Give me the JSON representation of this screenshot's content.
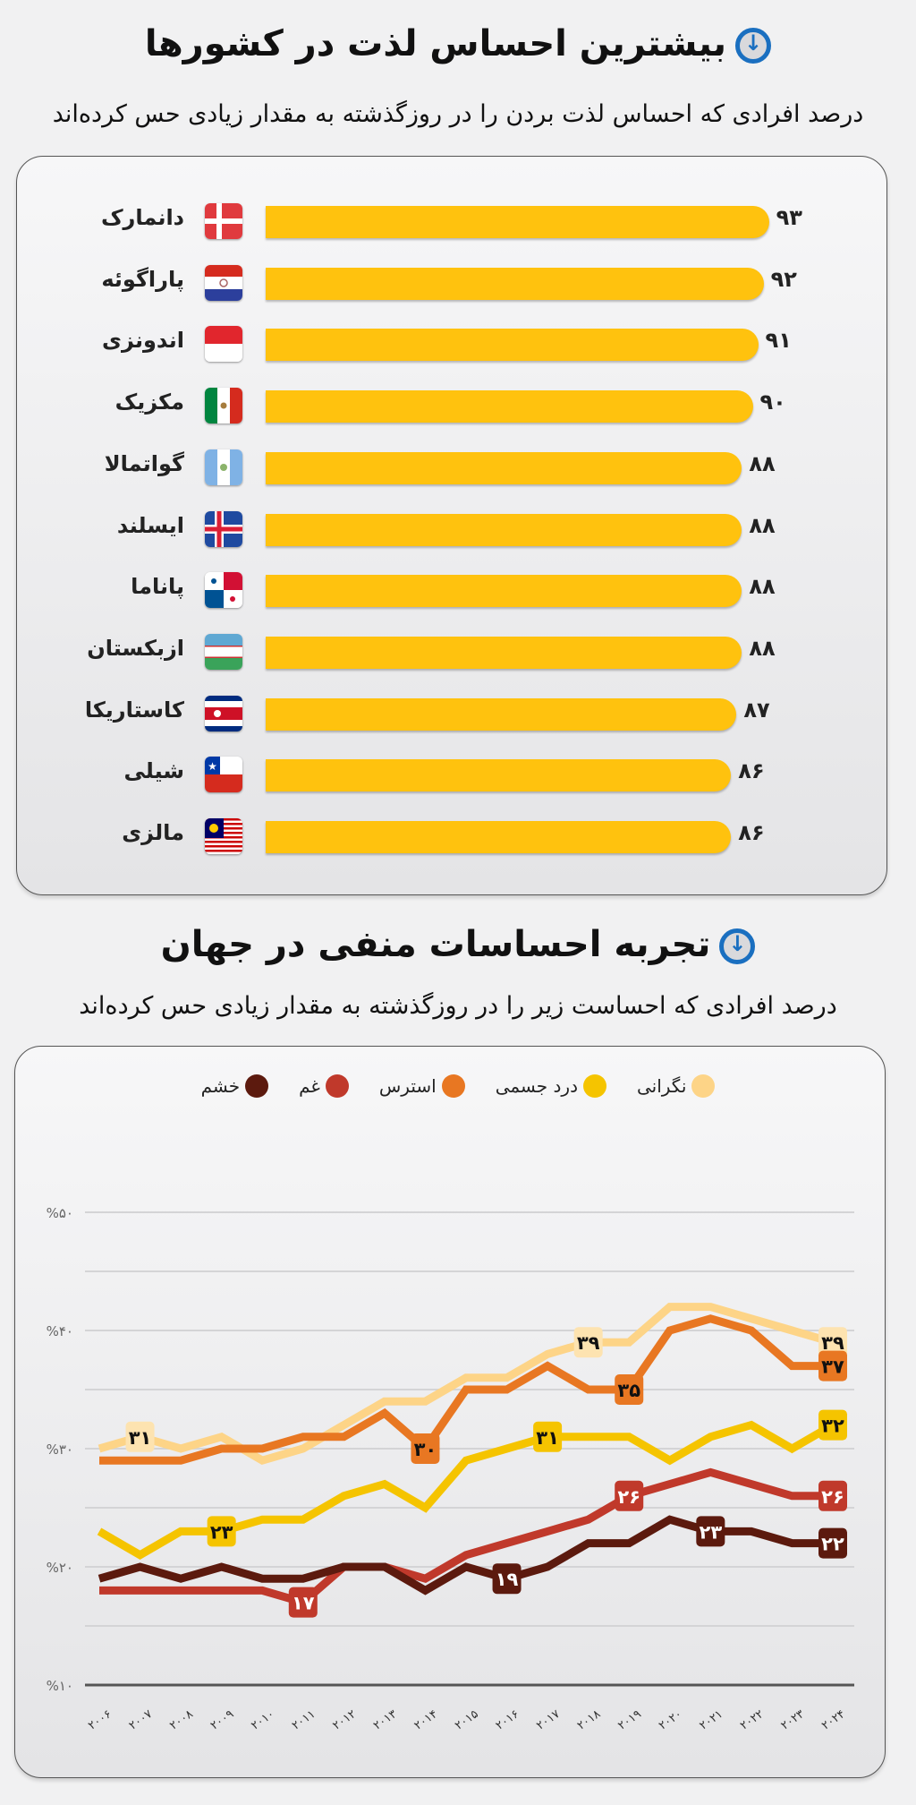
{
  "top": {
    "title": "بیشترین احساس لذت در کشورها",
    "subtitle": "درصد افرادی که احساس لذت بردن را در روزگذشته به مقدار زیادی حس کرده‌اند",
    "icon": "arrow-down-circle-icon"
  },
  "bottom": {
    "title": "تجربه احساسات منفی در جهان",
    "subtitle": "درصد افرادی که احساست زیر را در روزگذشته به مقدار زیادی حس کرده‌اند",
    "icon": "arrow-down-circle-icon"
  },
  "chart_data": [
    {
      "type": "bar",
      "orientation": "horizontal",
      "bar_color": "#ffc20e",
      "categories": [
        "دانمارک",
        "پاراگوئه",
        "اندونزی",
        "مکزیک",
        "گواتمالا",
        "ایسلند",
        "پاناما",
        "ازبکستان",
        "کاستاریکا",
        "شیلی",
        "مالزی"
      ],
      "flags": [
        "denmark-flag-icon",
        "paraguay-flag-icon",
        "indonesia-flag-icon",
        "mexico-flag-icon",
        "guatemala-flag-icon",
        "iceland-flag-icon",
        "panama-flag-icon",
        "uzbekistan-flag-icon",
        "costa-rica-flag-icon",
        "chile-flag-icon",
        "malaysia-flag-icon"
      ],
      "values": [
        93,
        92,
        91,
        90,
        88,
        88,
        88,
        88,
        87,
        86,
        86
      ],
      "value_labels": [
        "۹۳",
        "۹۲",
        "۹۱",
        "۹۰",
        "۸۸",
        "۸۸",
        "۸۸",
        "۸۸",
        "۸۷",
        "۸۶",
        "۸۶"
      ]
    },
    {
      "type": "line",
      "x": [
        2006,
        2007,
        2008,
        2009,
        2010,
        2011,
        2012,
        2013,
        2014,
        2015,
        2016,
        2017,
        2018,
        2019,
        2020,
        2021,
        2022,
        2023,
        2024
      ],
      "x_tick_labels": [
        "۲۰۰۶",
        "۲۰۰۷",
        "۲۰۰۸",
        "۲۰۰۹",
        "۲۰۱۰",
        "۲۰۱۱",
        "۲۰۱۲",
        "۲۰۱۳",
        "۲۰۱۴",
        "۲۰۱۵",
        "۲۰۱۶",
        "۲۰۱۷",
        "۲۰۱۸",
        "۲۰۱۹",
        "۲۰۲۰",
        "۲۰۲۱",
        "۲۰۲۲",
        "۲۰۲۳",
        "۲۰۲۴"
      ],
      "ylim": [
        10,
        50
      ],
      "y_ticks": [
        10,
        20,
        30,
        40,
        50
      ],
      "y_tick_labels": [
        "%۱۰",
        "%۲۰",
        "%۳۰",
        "%۴۰",
        "%۵۰"
      ],
      "grid": true,
      "legend_position": "top",
      "series": [
        {
          "name": "نگرانی",
          "color": "#fdd487",
          "label_bg": "#fde3b0",
          "label_fg": "#111",
          "values": [
            30,
            31,
            30,
            31,
            29,
            30,
            32,
            34,
            34,
            36,
            36,
            38,
            39,
            39,
            42,
            42,
            41,
            40,
            39
          ],
          "labels": [
            {
              "x": 2007,
              "text": "۳۱"
            },
            {
              "x": 2018,
              "text": "۳۹"
            },
            {
              "x": 2024,
              "text": "۳۹"
            }
          ]
        },
        {
          "name": "درد جسمی",
          "color": "#f5c400",
          "label_bg": "#f5c400",
          "label_fg": "#111",
          "values": [
            23,
            21,
            23,
            23,
            24,
            24,
            26,
            27,
            25,
            29,
            30,
            31,
            31,
            31,
            29,
            31,
            32,
            30,
            32
          ],
          "labels": [
            {
              "x": 2009,
              "text": "۲۳"
            },
            {
              "x": 2017,
              "text": "۳۱"
            },
            {
              "x": 2024,
              "text": "۳۲"
            }
          ]
        },
        {
          "name": "استرس",
          "color": "#e87722",
          "label_bg": "#e87722",
          "label_fg": "#111",
          "values": [
            29,
            29,
            29,
            30,
            30,
            31,
            31,
            33,
            30,
            35,
            35,
            37,
            35,
            35,
            40,
            41,
            40,
            37,
            37
          ],
          "labels": [
            {
              "x": 2014,
              "text": "۳۰"
            },
            {
              "x": 2019,
              "text": "۳۵"
            },
            {
              "x": 2024,
              "text": "۳۷"
            }
          ]
        },
        {
          "name": "غم",
          "color": "#c0392b",
          "label_bg": "#c0392b",
          "label_fg": "#fff",
          "values": [
            18,
            18,
            18,
            18,
            18,
            17,
            20,
            20,
            19,
            21,
            22,
            23,
            24,
            26,
            27,
            28,
            27,
            26,
            26
          ],
          "labels": [
            {
              "x": 2011,
              "text": "۱۷"
            },
            {
              "x": 2019,
              "text": "۲۶"
            },
            {
              "x": 2024,
              "text": "۲۶"
            }
          ]
        },
        {
          "name": "خشم",
          "color": "#5c1a0e",
          "label_bg": "#5c1a0e",
          "label_fg": "#fff",
          "values": [
            19,
            20,
            19,
            20,
            19,
            19,
            20,
            20,
            18,
            20,
            19,
            20,
            22,
            22,
            24,
            23,
            23,
            22,
            22
          ],
          "labels": [
            {
              "x": 2016,
              "text": "۱۹"
            },
            {
              "x": 2021,
              "text": "۲۳"
            },
            {
              "x": 2024,
              "text": "۲۲"
            }
          ]
        }
      ]
    }
  ]
}
